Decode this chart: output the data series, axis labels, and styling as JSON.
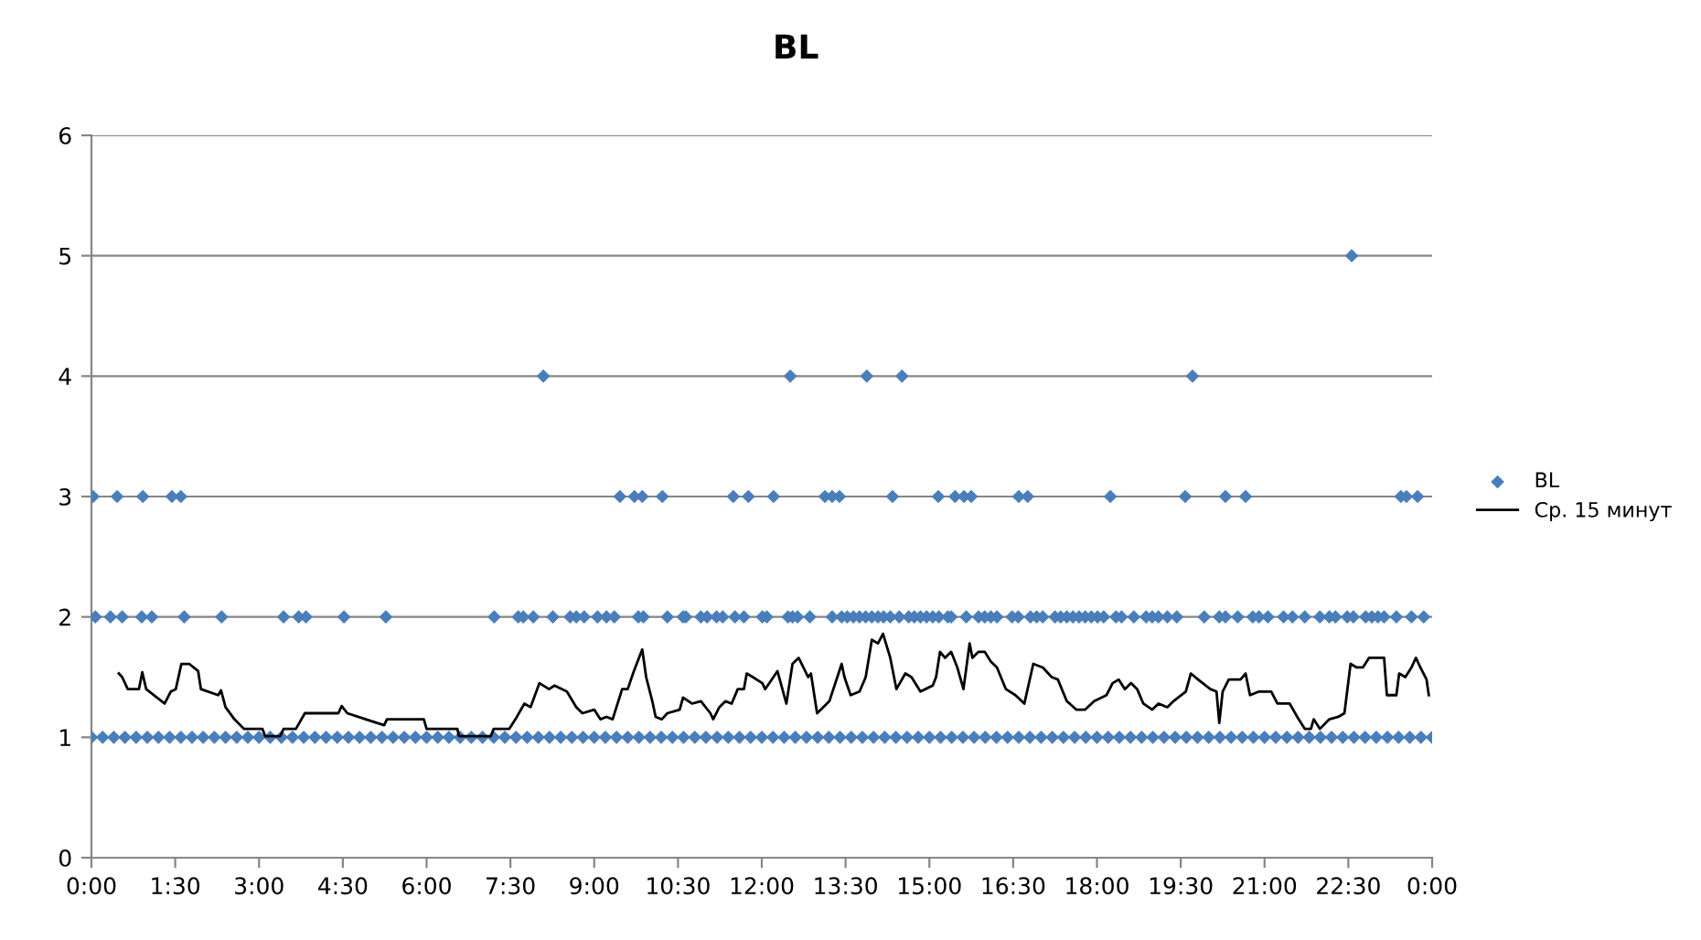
{
  "chart_data": {
    "type": "scatter",
    "title": "BL",
    "xlim": [
      0,
      24
    ],
    "ylim": [
      0,
      6
    ],
    "yticks": [
      0,
      1,
      2,
      3,
      4,
      5,
      6
    ],
    "xticks": [
      {
        "value": 0,
        "label": "0:00"
      },
      {
        "value": 1.5,
        "label": "1:30"
      },
      {
        "value": 3,
        "label": "3:00"
      },
      {
        "value": 4.5,
        "label": "4:30"
      },
      {
        "value": 6,
        "label": "6:00"
      },
      {
        "value": 7.5,
        "label": "7:30"
      },
      {
        "value": 9,
        "label": "9:00"
      },
      {
        "value": 10.5,
        "label": "10:30"
      },
      {
        "value": 12,
        "label": "12:00"
      },
      {
        "value": 13.5,
        "label": "13:30"
      },
      {
        "value": 15,
        "label": "15:00"
      },
      {
        "value": 16.5,
        "label": "16:30"
      },
      {
        "value": 18,
        "label": "18:00"
      },
      {
        "value": 19.5,
        "label": "19:30"
      },
      {
        "value": 21,
        "label": "21:00"
      },
      {
        "value": 22.5,
        "label": "22:30"
      },
      {
        "value": 24,
        "label": "0:00"
      }
    ],
    "grid": "y",
    "legend": "right",
    "series": [
      {
        "name": "BL",
        "color": "#4a7ebb",
        "marker": "diamond",
        "x": [
          0.0,
          0.2,
          0.4,
          0.6,
          0.8,
          1.0,
          1.2,
          1.4,
          1.6,
          1.8,
          2.0,
          2.2,
          2.4,
          2.6,
          2.8,
          3.0,
          3.2,
          3.4,
          3.6,
          3.8,
          4.0,
          4.2,
          4.4,
          4.6,
          4.8,
          5.0,
          5.2,
          5.4,
          5.6,
          5.8,
          6.0,
          6.2,
          6.4,
          6.6,
          6.8,
          7.0,
          7.2,
          7.4,
          7.6,
          7.8,
          8.0,
          8.2,
          8.4,
          8.6,
          8.8,
          9.0,
          9.2,
          9.4,
          9.6,
          9.8,
          10.0,
          10.2,
          10.4,
          10.6,
          10.8,
          11.0,
          11.2,
          11.4,
          11.6,
          11.8,
          12.0,
          12.2,
          12.4,
          12.6,
          12.8,
          13.0,
          13.2,
          13.4,
          13.6,
          13.8,
          14.0,
          14.2,
          14.4,
          14.6,
          14.8,
          15.0,
          15.2,
          15.4,
          15.6,
          15.8,
          16.0,
          16.2,
          16.4,
          16.6,
          16.8,
          17.0,
          17.2,
          17.4,
          17.6,
          17.8,
          18.0,
          18.2,
          18.4,
          18.6,
          18.8,
          19.0,
          19.2,
          19.4,
          19.6,
          19.8,
          20.0,
          20.2,
          20.4,
          20.6,
          20.8,
          21.0,
          21.2,
          21.4,
          21.6,
          21.8,
          22.0,
          22.2,
          22.4,
          22.6,
          22.8,
          23.0,
          23.2,
          23.4,
          23.6,
          23.8,
          24.0,
          0.07,
          0.34,
          0.55,
          0.9,
          1.08,
          1.66,
          2.33,
          3.44,
          3.71,
          3.84,
          4.52,
          5.27,
          7.21,
          7.64,
          7.73,
          7.91,
          8.26,
          8.57,
          8.68,
          8.82,
          9.06,
          9.22,
          9.36,
          9.79,
          9.88,
          10.31,
          10.59,
          10.64,
          10.91,
          11.02,
          11.19,
          11.3,
          11.52,
          11.68,
          12.01,
          12.09,
          12.47,
          12.55,
          12.64,
          12.86,
          13.26,
          13.43,
          13.53,
          13.64,
          13.75,
          13.86,
          13.97,
          14.08,
          14.18,
          14.3,
          14.46,
          14.63,
          14.73,
          14.84,
          14.95,
          15.06,
          15.17,
          15.33,
          15.39,
          15.66,
          15.88,
          15.99,
          16.1,
          16.21,
          16.48,
          16.59,
          16.81,
          16.92,
          17.03,
          17.25,
          17.35,
          17.46,
          17.57,
          17.68,
          17.79,
          17.9,
          18.01,
          18.12,
          18.34,
          18.44,
          18.66,
          18.88,
          18.99,
          19.1,
          19.26,
          19.43,
          19.92,
          20.19,
          20.3,
          20.52,
          20.79,
          20.9,
          21.06,
          21.34,
          21.5,
          21.72,
          21.99,
          22.16,
          22.27,
          22.48,
          22.59,
          22.81,
          22.92,
          23.03,
          23.14,
          23.36,
          23.63,
          23.85,
          0.03,
          0.46,
          0.92,
          1.44,
          1.6,
          9.46,
          9.72,
          9.86,
          10.22,
          11.49,
          11.76,
          12.21,
          13.13,
          13.26,
          13.39,
          14.34,
          15.16,
          15.46,
          15.62,
          15.75,
          16.6,
          16.76,
          18.24,
          19.58,
          20.3,
          20.66,
          23.44,
          23.54,
          23.74,
          8.09,
          12.51,
          13.88,
          14.51,
          19.71,
          22.56
        ],
        "values": [
          1,
          1,
          1,
          1,
          1,
          1,
          1,
          1,
          1,
          1,
          1,
          1,
          1,
          1,
          1,
          1,
          1,
          1,
          1,
          1,
          1,
          1,
          1,
          1,
          1,
          1,
          1,
          1,
          1,
          1,
          1,
          1,
          1,
          1,
          1,
          1,
          1,
          1,
          1,
          1,
          1,
          1,
          1,
          1,
          1,
          1,
          1,
          1,
          1,
          1,
          1,
          1,
          1,
          1,
          1,
          1,
          1,
          1,
          1,
          1,
          1,
          1,
          1,
          1,
          1,
          1,
          1,
          1,
          1,
          1,
          1,
          1,
          1,
          1,
          1,
          1,
          1,
          1,
          1,
          1,
          1,
          1,
          1,
          1,
          1,
          1,
          1,
          1,
          1,
          1,
          1,
          1,
          1,
          1,
          1,
          1,
          1,
          1,
          1,
          1,
          1,
          1,
          1,
          1,
          1,
          1,
          1,
          1,
          1,
          1,
          1,
          1,
          1,
          1,
          1,
          1,
          1,
          1,
          1,
          1,
          1,
          2,
          2,
          2,
          2,
          2,
          2,
          2,
          2,
          2,
          2,
          2,
          2,
          2,
          2,
          2,
          2,
          2,
          2,
          2,
          2,
          2,
          2,
          2,
          2,
          2,
          2,
          2,
          2,
          2,
          2,
          2,
          2,
          2,
          2,
          2,
          2,
          2,
          2,
          2,
          2,
          2,
          2,
          2,
          2,
          2,
          2,
          2,
          2,
          2,
          2,
          2,
          2,
          2,
          2,
          2,
          2,
          2,
          2,
          2,
          2,
          2,
          2,
          2,
          2,
          2,
          2,
          2,
          2,
          2,
          2,
          2,
          2,
          2,
          2,
          2,
          2,
          2,
          2,
          2,
          2,
          2,
          2,
          2,
          2,
          2,
          2,
          2,
          2,
          2,
          2,
          2,
          2,
          2,
          2,
          2,
          2,
          2,
          2,
          2,
          2,
          2,
          2,
          2,
          2,
          2,
          2,
          2,
          2,
          3,
          3,
          3,
          3,
          3,
          3,
          3,
          3,
          3,
          3,
          3,
          3,
          3,
          3,
          3,
          3,
          3,
          3,
          3,
          3,
          3,
          3,
          3,
          3,
          3,
          3,
          3,
          3,
          3,
          4,
          4,
          4,
          4,
          4,
          5
        ]
      },
      {
        "name": "Ср. 15 минут",
        "type": "line",
        "color": "#000000",
        "marker": "none",
        "line_style": "solid",
        "x": [
          0.49,
          0.55,
          0.65,
          0.85,
          0.91,
          0.98,
          1.31,
          1.42,
          1.51,
          1.61,
          1.75,
          1.91,
          1.96,
          2.27,
          2.32,
          2.4,
          2.56,
          2.73,
          3.06,
          3.11,
          3.38,
          3.44,
          3.66,
          3.82,
          4.42,
          4.48,
          4.58,
          4.91,
          5.24,
          5.29,
          5.95,
          6.0,
          6.55,
          6.58,
          7.15,
          7.2,
          7.48,
          7.59,
          7.75,
          7.86,
          8.02,
          8.19,
          8.29,
          8.51,
          8.68,
          8.79,
          9.0,
          9.11,
          9.22,
          9.33,
          9.5,
          9.6,
          9.71,
          9.86,
          9.93,
          10.04,
          10.1,
          10.21,
          10.31,
          10.53,
          10.59,
          10.75,
          10.91,
          11.08,
          11.13,
          11.24,
          11.35,
          11.46,
          11.57,
          11.68,
          11.73,
          11.84,
          12.01,
          12.06,
          12.28,
          12.44,
          12.55,
          12.66,
          12.83,
          12.88,
          12.99,
          13.1,
          13.21,
          13.43,
          13.48,
          13.59,
          13.75,
          13.86,
          13.97,
          14.08,
          14.17,
          14.3,
          14.41,
          14.57,
          14.68,
          14.84,
          15.06,
          15.12,
          15.19,
          15.28,
          15.39,
          15.5,
          15.61,
          15.72,
          15.77,
          15.88,
          15.99,
          16.1,
          16.21,
          16.37,
          16.54,
          16.7,
          16.86,
          17.03,
          17.19,
          17.3,
          17.46,
          17.63,
          17.79,
          17.95,
          18.17,
          18.28,
          18.39,
          18.5,
          18.61,
          18.72,
          18.83,
          18.99,
          19.1,
          19.26,
          19.37,
          19.59,
          19.68,
          19.81,
          20.03,
          20.14,
          20.19,
          20.25,
          20.36,
          20.57,
          20.66,
          20.74,
          20.9,
          21.12,
          21.23,
          21.45,
          21.61,
          21.72,
          21.83,
          21.88,
          21.99,
          22.16,
          22.32,
          22.43,
          22.54,
          22.65,
          22.76,
          22.87,
          23.14,
          23.19,
          23.36,
          23.41,
          23.52,
          23.63,
          23.71,
          23.79,
          23.9,
          23.94
        ],
        "values": [
          1.53,
          1.5,
          1.4,
          1.4,
          1.54,
          1.4,
          1.28,
          1.38,
          1.4,
          1.61,
          1.61,
          1.55,
          1.4,
          1.35,
          1.39,
          1.25,
          1.15,
          1.07,
          1.07,
          1.01,
          1.01,
          1.07,
          1.07,
          1.2,
          1.2,
          1.26,
          1.2,
          1.15,
          1.1,
          1.15,
          1.15,
          1.07,
          1.07,
          1.01,
          1.01,
          1.07,
          1.07,
          1.15,
          1.28,
          1.25,
          1.45,
          1.4,
          1.43,
          1.38,
          1.25,
          1.2,
          1.23,
          1.15,
          1.17,
          1.15,
          1.4,
          1.4,
          1.55,
          1.73,
          1.5,
          1.3,
          1.17,
          1.15,
          1.2,
          1.23,
          1.33,
          1.28,
          1.3,
          1.2,
          1.15,
          1.25,
          1.3,
          1.28,
          1.4,
          1.4,
          1.53,
          1.5,
          1.45,
          1.4,
          1.55,
          1.28,
          1.61,
          1.66,
          1.5,
          1.53,
          1.2,
          1.25,
          1.3,
          1.61,
          1.5,
          1.35,
          1.38,
          1.5,
          1.81,
          1.78,
          1.86,
          1.66,
          1.4,
          1.53,
          1.5,
          1.38,
          1.43,
          1.5,
          1.71,
          1.66,
          1.71,
          1.58,
          1.4,
          1.78,
          1.66,
          1.71,
          1.71,
          1.63,
          1.58,
          1.4,
          1.35,
          1.28,
          1.61,
          1.58,
          1.5,
          1.48,
          1.3,
          1.23,
          1.23,
          1.3,
          1.35,
          1.45,
          1.48,
          1.4,
          1.45,
          1.4,
          1.28,
          1.23,
          1.28,
          1.25,
          1.3,
          1.38,
          1.53,
          1.48,
          1.4,
          1.38,
          1.12,
          1.38,
          1.48,
          1.48,
          1.53,
          1.35,
          1.38,
          1.38,
          1.28,
          1.28,
          1.15,
          1.07,
          1.07,
          1.15,
          1.07,
          1.15,
          1.17,
          1.2,
          1.61,
          1.58,
          1.58,
          1.66,
          1.66,
          1.35,
          1.35,
          1.53,
          1.5,
          1.58,
          1.66,
          1.58,
          1.48,
          1.35
        ]
      }
    ]
  }
}
